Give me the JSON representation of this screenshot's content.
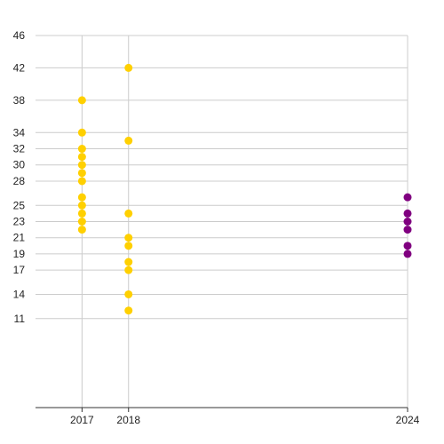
{
  "chart_data": {
    "type": "scatter",
    "title": "",
    "xlabel": "",
    "ylabel": "",
    "x_ticks": [
      2017,
      2018,
      2024
    ],
    "y_ticks": [
      11,
      14,
      17,
      19,
      21,
      23,
      25,
      28,
      30,
      32,
      34,
      38,
      42,
      46
    ],
    "xlim": [
      2016,
      2024
    ],
    "ylim": [
      0,
      46
    ],
    "grid": true,
    "legend": "none",
    "series": [
      {
        "color": "#FFD000",
        "points": [
          {
            "x": 2017,
            "y": 38
          },
          {
            "x": 2017,
            "y": 34
          },
          {
            "x": 2017,
            "y": 32
          },
          {
            "x": 2017,
            "y": 31
          },
          {
            "x": 2017,
            "y": 30
          },
          {
            "x": 2017,
            "y": 29
          },
          {
            "x": 2017,
            "y": 28
          },
          {
            "x": 2017,
            "y": 26
          },
          {
            "x": 2017,
            "y": 25
          },
          {
            "x": 2017,
            "y": 24
          },
          {
            "x": 2017,
            "y": 23
          },
          {
            "x": 2017,
            "y": 22
          },
          {
            "x": 2018,
            "y": 42
          },
          {
            "x": 2018,
            "y": 33
          },
          {
            "x": 2018,
            "y": 24
          },
          {
            "x": 2018,
            "y": 21
          },
          {
            "x": 2018,
            "y": 20
          },
          {
            "x": 2018,
            "y": 18
          },
          {
            "x": 2018,
            "y": 17
          },
          {
            "x": 2018,
            "y": 14
          },
          {
            "x": 2018,
            "y": 12
          }
        ]
      },
      {
        "color": "#800080",
        "points": [
          {
            "x": 2024,
            "y": 26
          },
          {
            "x": 2024,
            "y": 24
          },
          {
            "x": 2024,
            "y": 23
          },
          {
            "x": 2024,
            "y": 22
          },
          {
            "x": 2024,
            "y": 20
          },
          {
            "x": 2024,
            "y": 19
          }
        ]
      }
    ]
  }
}
